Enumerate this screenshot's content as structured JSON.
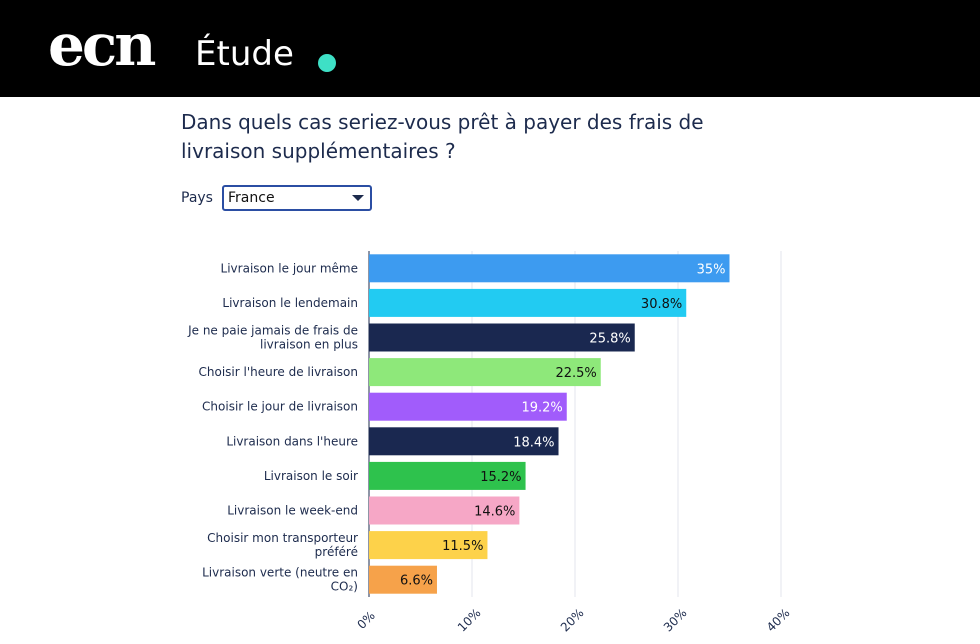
{
  "header": {
    "logo_text": "ecn",
    "section_label": "Étude",
    "accent_color": "#3ee0c6"
  },
  "question": "Dans quels cas seriez-vous prêt à payer des frais de livraison supplémentaires ?",
  "filter": {
    "label": "Pays",
    "selected": "France"
  },
  "chart_data": {
    "type": "bar",
    "orientation": "horizontal",
    "categories": [
      [
        "Livraison le jour même"
      ],
      [
        "Livraison le lendemain"
      ],
      [
        "Je ne paie jamais de frais de",
        "livraison en plus"
      ],
      [
        "Choisir l'heure de livraison"
      ],
      [
        "Choisir le jour de livraison"
      ],
      [
        "Livraison dans l'heure"
      ],
      [
        "Livraison le soir"
      ],
      [
        "Livraison le week-end"
      ],
      [
        "Choisir mon transporteur",
        "préféré"
      ],
      [
        "Livraison verte (neutre en",
        "CO₂)"
      ]
    ],
    "values": [
      35,
      30.8,
      25.8,
      22.5,
      19.2,
      18.4,
      15.2,
      14.6,
      11.5,
      6.6
    ],
    "data_labels": [
      "35%",
      "30.8%",
      "25.8%",
      "22.5%",
      "19.2%",
      "18.4%",
      "15.2%",
      "14.6%",
      "11.5%",
      "6.6%"
    ],
    "colors": [
      "#3d9bf0",
      "#22cbf2",
      "#1a2850",
      "#8ee87a",
      "#a15cfb",
      "#1a2850",
      "#2ec24d",
      "#f6a7c6",
      "#fdd24a",
      "#f6a24a"
    ],
    "label_colors": [
      "#ffffff",
      "#111111",
      "#ffffff",
      "#111111",
      "#ffffff",
      "#ffffff",
      "#111111",
      "#111111",
      "#111111",
      "#111111"
    ],
    "xlim": [
      0,
      40
    ],
    "xticks": [
      "0%",
      "10%",
      "20%",
      "30%",
      "40%"
    ],
    "grid": true
  }
}
